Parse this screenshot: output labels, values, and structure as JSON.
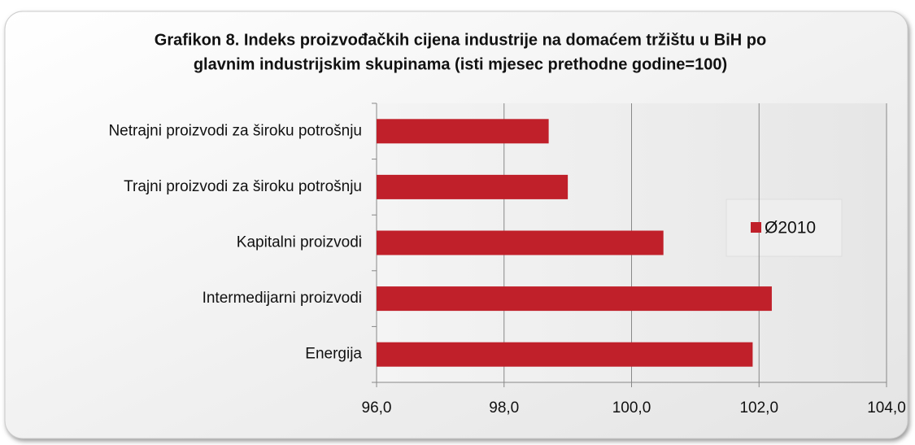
{
  "chart_data": {
    "type": "bar",
    "orientation": "horizontal",
    "title": [
      "Grafikon 8. Indeks proizvođačkih cijena industrije na domaćem tržištu u BiH po",
      "glavnim industrijskim skupinama (isti mjesec prethodne godine=100)"
    ],
    "categories": [
      "Netrajni proizvodi za široku potrošnju",
      "Trajni proizvodi za široku potrošnju",
      "Kapitalni proizvodi",
      "Intermedijarni proizvodi",
      "Energija"
    ],
    "series": [
      {
        "name": "Ø2010",
        "color": "#c0202a",
        "values": [
          98.7,
          99.0,
          100.5,
          102.2,
          101.9
        ]
      }
    ],
    "xlim": [
      96,
      104
    ],
    "xticks": [
      {
        "value": 96,
        "label": "96,0"
      },
      {
        "value": 98,
        "label": "98,0"
      },
      {
        "value": 100,
        "label": "100,0"
      },
      {
        "value": 102,
        "label": "102,0"
      },
      {
        "value": 104,
        "label": "104,0"
      }
    ],
    "grid": true,
    "legend": "right"
  }
}
